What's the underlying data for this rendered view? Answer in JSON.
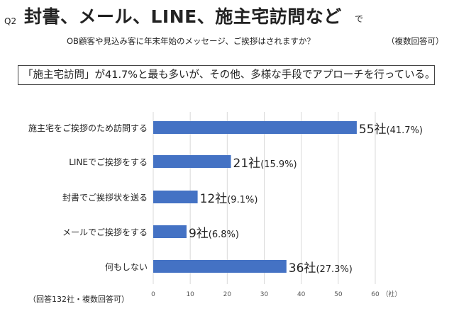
{
  "header": {
    "q_number": "Q2",
    "title": "封書、メール、LINE、施主宅訪問など",
    "title_suffix": "で",
    "question": "OB顧客や見込み客に年末年始のメッセージ、ご挨拶はされますか？",
    "question_note": "（複数回答可）"
  },
  "summary": "「施主宅訪問」が41.7%と最も多いが、その他、多様な手段でアプローチを行っている。",
  "footnote": "（回答132社・複数回答可）",
  "colors": {
    "bar": "#4472C4",
    "grid": "#d9d9d9"
  },
  "chart_data": {
    "type": "bar",
    "orientation": "horizontal",
    "categories": [
      "施主宅をご挨拶のため訪問する",
      "LINEでご挨拶をする",
      "封書でご挨拶状を送る",
      "メールでご挨拶をする",
      "何もしない"
    ],
    "values": [
      55,
      21,
      12,
      9,
      36
    ],
    "value_labels": [
      "55社",
      "21社",
      "12社",
      "9社",
      "36社"
    ],
    "percent_labels": [
      "(41.7%)",
      "(15.9%)",
      "(9.1%)",
      "(6.8%)",
      "(27.3%)"
    ],
    "xlim": [
      0,
      60
    ],
    "xticks": [
      "0",
      "10",
      "20",
      "30",
      "40",
      "50",
      "60"
    ],
    "xunit": "（社）",
    "grid": true
  }
}
